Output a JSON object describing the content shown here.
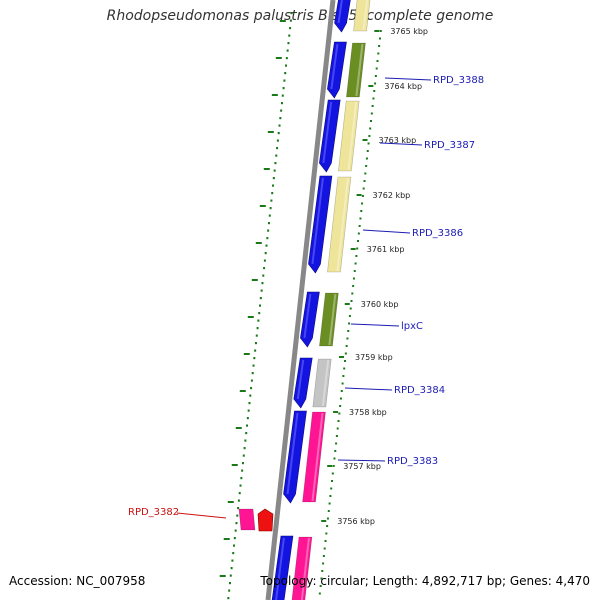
{
  "title": "Rhodopseudomonas palustris BisB5, complete genome",
  "footer": {
    "accession": "Accession: NC_007958",
    "summary": "Topology: circular; Length: 4,892,717 bp; Genes: 4,470"
  },
  "colors": {
    "cds_forward": "#1414e0",
    "green_category": "#6b8e23",
    "yellow_category": "#eee49a",
    "grey_category": "#c4c4c4",
    "pink_category": "#ff1493",
    "red_gene": "#ee1111",
    "label_blue": "#1c1cb4",
    "label_red": "#cc1111",
    "tick_green": "#1a7a1a",
    "backbone": "#888888"
  },
  "ticks": [
    {
      "label": "3765 kbp"
    },
    {
      "label": "3764 kbp"
    },
    {
      "label": "3763 kbp"
    },
    {
      "label": "3762 kbp"
    },
    {
      "label": "3761 kbp"
    },
    {
      "label": "3760 kbp"
    },
    {
      "label": "3759 kbp"
    },
    {
      "label": "3758 kbp"
    },
    {
      "label": "3757 kbp"
    },
    {
      "label": "3756 kbp"
    }
  ],
  "genes": [
    {
      "name": "",
      "category": "yellow_category"
    },
    {
      "name": "RPD_3388",
      "category": "green_category"
    },
    {
      "name": "RPD_3387",
      "category": "yellow_category"
    },
    {
      "name": "RPD_3386",
      "category": "yellow_category"
    },
    {
      "name": "lpxC",
      "category": "green_category"
    },
    {
      "name": "RPD_3384",
      "category": "grey_category"
    },
    {
      "name": "RPD_3383",
      "category": "pink_category"
    },
    {
      "name": "",
      "category": "pink_category"
    }
  ],
  "reverse_gene": {
    "name": "RPD_3382",
    "category": "pink_category"
  }
}
